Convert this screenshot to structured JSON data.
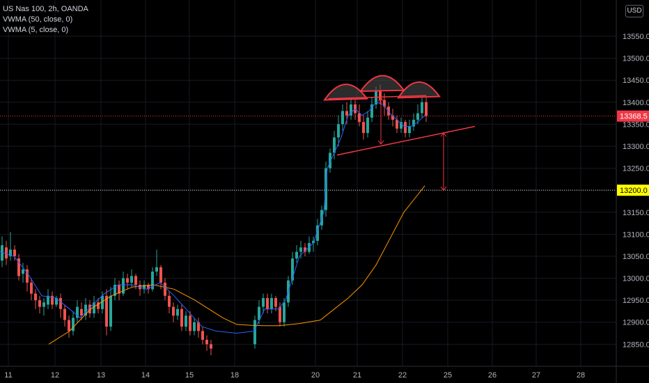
{
  "legend": {
    "symbol": "US Nas 100, 2h, OANDA",
    "indicator_1": "VWMA (50, close, 0)",
    "indicator_2": "VWMA (5, close, 0)"
  },
  "currency": "USD",
  "colors": {
    "up": "#26a69a",
    "down": "#ef5350",
    "vwma50": "#ff9800",
    "vwma5": "#2962ff",
    "drawing": "#f23645",
    "price_tag": "#f23645",
    "target_tag": "#ffff00",
    "axis_text": "#b2b5be"
  },
  "chart_data": {
    "type": "candlestick",
    "x_ticks": [
      "11",
      "12",
      "13",
      "14",
      "15",
      "18",
      "20",
      "21",
      "22",
      "25",
      "26",
      "27",
      "28"
    ],
    "y_ticks": [
      13550,
      13500,
      13450,
      13400,
      13350,
      13300,
      13250,
      13200,
      13150,
      13100,
      13050,
      13000,
      12950,
      12900,
      12850
    ],
    "ylim": [
      12830,
      13600
    ],
    "last_price": {
      "value": 13368.5,
      "label": "13368.5"
    },
    "target_level": {
      "value": 13200,
      "label": "13200.0"
    },
    "vwma50": [
      [
        70,
        12850
      ],
      [
        100,
        12880
      ],
      [
        130,
        12930
      ],
      [
        160,
        12960
      ],
      [
        190,
        12980
      ],
      [
        220,
        12985
      ],
      [
        250,
        12975
      ],
      [
        280,
        12950
      ],
      [
        300,
        12930
      ],
      [
        320,
        12910
      ],
      [
        340,
        12895
      ],
      [
        360,
        12893
      ],
      [
        380,
        12892
      ],
      [
        400,
        12892
      ],
      [
        430,
        12897
      ],
      [
        460,
        12905
      ],
      [
        480,
        12930
      ],
      [
        500,
        12955
      ],
      [
        520,
        12985
      ],
      [
        540,
        13030
      ],
      [
        560,
        13090
      ],
      [
        580,
        13150
      ],
      [
        600,
        13190
      ],
      [
        610,
        13210
      ]
    ],
    "vwma5": [
      [
        0,
        13060
      ],
      [
        20,
        13050
      ],
      [
        40,
        13010
      ],
      [
        60,
        12960
      ],
      [
        80,
        12955
      ],
      [
        100,
        12930
      ],
      [
        115,
        12910
      ],
      [
        130,
        12935
      ],
      [
        150,
        12965
      ],
      [
        170,
        12985
      ],
      [
        190,
        12985
      ],
      [
        210,
        12975
      ],
      [
        230,
        12990
      ],
      [
        250,
        12960
      ],
      [
        270,
        12925
      ],
      [
        290,
        12890
      ],
      [
        310,
        12880
      ],
      [
        340,
        12875
      ],
      [
        365,
        12880
      ],
      [
        380,
        12930
      ],
      [
        400,
        12930
      ],
      [
        410,
        12950
      ],
      [
        430,
        13050
      ],
      [
        450,
        13080
      ],
      [
        465,
        13150
      ],
      [
        470,
        13250
      ],
      [
        480,
        13285
      ],
      [
        490,
        13320
      ],
      [
        500,
        13370
      ],
      [
        510,
        13385
      ],
      [
        520,
        13370
      ],
      [
        530,
        13380
      ],
      [
        540,
        13400
      ],
      [
        550,
        13395
      ],
      [
        560,
        13375
      ],
      [
        570,
        13360
      ],
      [
        580,
        13345
      ],
      [
        590,
        13345
      ],
      [
        600,
        13355
      ],
      [
        610,
        13370
      ]
    ],
    "candles": [
      [
        3,
        13040,
        13075,
        13025,
        13095
      ],
      [
        9,
        13070,
        13045,
        13030,
        13085
      ],
      [
        15,
        13050,
        13065,
        13040,
        13105
      ],
      [
        21,
        13065,
        13050,
        13040,
        13075
      ],
      [
        27,
        13045,
        13005,
        12995,
        13055
      ],
      [
        33,
        13010,
        13020,
        12990,
        13035
      ],
      [
        39,
        13020,
        12990,
        12970,
        13030
      ],
      [
        45,
        12990,
        12965,
        12950,
        13000
      ],
      [
        51,
        12965,
        12950,
        12930,
        12975
      ],
      [
        57,
        12950,
        12935,
        12920,
        12960
      ],
      [
        63,
        12935,
        12945,
        12915,
        12955
      ],
      [
        69,
        12940,
        12960,
        12930,
        12975
      ],
      [
        75,
        12960,
        12940,
        12930,
        12970
      ],
      [
        81,
        12940,
        12955,
        12935,
        12960
      ],
      [
        87,
        12955,
        12930,
        12910,
        12965
      ],
      [
        93,
        12930,
        12905,
        12890,
        12940
      ],
      [
        99,
        12905,
        12880,
        12865,
        12915
      ],
      [
        105,
        12880,
        12910,
        12870,
        12925
      ],
      [
        111,
        12910,
        12935,
        12900,
        12950
      ],
      [
        117,
        12930,
        12915,
        12905,
        12945
      ],
      [
        123,
        12915,
        12940,
        12905,
        12955
      ],
      [
        129,
        12940,
        12920,
        12910,
        12950
      ],
      [
        135,
        12920,
        12945,
        12910,
        12960
      ],
      [
        141,
        12945,
        12930,
        12920,
        12955
      ],
      [
        147,
        12930,
        12960,
        12920,
        12970
      ],
      [
        153,
        12960,
        12890,
        12870,
        12975
      ],
      [
        159,
        12890,
        12960,
        12880,
        12980
      ],
      [
        165,
        12960,
        12985,
        12950,
        13000
      ],
      [
        171,
        12985,
        12965,
        12950,
        12995
      ],
      [
        177,
        12965,
        13000,
        12960,
        13015
      ],
      [
        183,
        13000,
        12990,
        12975,
        13010
      ],
      [
        189,
        12990,
        13005,
        12980,
        13020
      ],
      [
        195,
        13005,
        12985,
        12975,
        13010
      ],
      [
        201,
        12985,
        12975,
        12960,
        12995
      ],
      [
        207,
        12975,
        12985,
        12965,
        12995
      ],
      [
        213,
        12985,
        12975,
        12965,
        12990
      ],
      [
        219,
        12975,
        13015,
        12970,
        13025
      ],
      [
        225,
        13015,
        13025,
        13005,
        13065
      ],
      [
        231,
        13025,
        12990,
        12975,
        13030
      ],
      [
        237,
        12990,
        12960,
        12950,
        13000
      ],
      [
        243,
        12960,
        12935,
        12920,
        12970
      ],
      [
        249,
        12935,
        12915,
        12900,
        12945
      ],
      [
        255,
        12915,
        12930,
        12905,
        12940
      ],
      [
        261,
        12930,
        12890,
        12880,
        12940
      ],
      [
        267,
        12890,
        12915,
        12880,
        12925
      ],
      [
        273,
        12915,
        12880,
        12870,
        12925
      ],
      [
        279,
        12880,
        12900,
        12870,
        12910
      ],
      [
        285,
        12900,
        12880,
        12865,
        12910
      ],
      [
        291,
        12880,
        12860,
        12850,
        12890
      ],
      [
        297,
        12860,
        12850,
        12835,
        12870
      ],
      [
        303,
        12850,
        12840,
        12825,
        12860
      ],
      [
        366,
        12850,
        12905,
        12840,
        12915
      ],
      [
        372,
        12905,
        12935,
        12895,
        12950
      ],
      [
        378,
        12935,
        12955,
        12920,
        12965
      ],
      [
        384,
        12955,
        12930,
        12920,
        12965
      ],
      [
        390,
        12930,
        12955,
        12920,
        12965
      ],
      [
        396,
        12955,
        12935,
        12925,
        12960
      ],
      [
        402,
        12935,
        12900,
        12890,
        12945
      ],
      [
        408,
        12900,
        12945,
        12890,
        12955
      ],
      [
        414,
        12945,
        12995,
        12935,
        13005
      ],
      [
        420,
        12995,
        13045,
        12985,
        13060
      ],
      [
        426,
        13045,
        13060,
        13035,
        13075
      ],
      [
        432,
        13060,
        13070,
        13045,
        13085
      ],
      [
        438,
        13070,
        13060,
        13050,
        13080
      ],
      [
        444,
        13060,
        13080,
        13055,
        13095
      ],
      [
        450,
        13080,
        13085,
        13060,
        13095
      ],
      [
        456,
        13085,
        13120,
        13075,
        13135
      ],
      [
        462,
        13120,
        13155,
        13110,
        13165
      ],
      [
        468,
        13155,
        13250,
        13140,
        13265
      ],
      [
        474,
        13250,
        13285,
        13240,
        13295
      ],
      [
        480,
        13285,
        13320,
        13270,
        13335
      ],
      [
        486,
        13320,
        13350,
        13300,
        13370
      ],
      [
        492,
        13350,
        13380,
        13335,
        13395
      ],
      [
        498,
        13380,
        13370,
        13350,
        13400
      ],
      [
        504,
        13370,
        13395,
        13360,
        13410
      ],
      [
        510,
        13395,
        13375,
        13360,
        13405
      ],
      [
        516,
        13375,
        13355,
        13345,
        13395
      ],
      [
        522,
        13355,
        13330,
        13315,
        13370
      ],
      [
        528,
        13330,
        13365,
        13320,
        13380
      ],
      [
        534,
        13365,
        13395,
        13355,
        13410
      ],
      [
        540,
        13395,
        13425,
        13385,
        13435
      ],
      [
        546,
        13425,
        13405,
        13395,
        13440
      ],
      [
        552,
        13405,
        13390,
        13370,
        13420
      ],
      [
        558,
        13390,
        13370,
        13360,
        13400
      ],
      [
        564,
        13370,
        13360,
        13345,
        13385
      ],
      [
        570,
        13360,
        13340,
        13330,
        13370
      ],
      [
        576,
        13340,
        13355,
        13330,
        13365
      ],
      [
        582,
        13355,
        13330,
        13320,
        13360
      ],
      [
        588,
        13330,
        13345,
        13320,
        13360
      ],
      [
        594,
        13345,
        13360,
        13335,
        13375
      ],
      [
        600,
        13360,
        13375,
        13350,
        13395
      ],
      [
        606,
        13375,
        13400,
        13365,
        13410
      ],
      [
        612,
        13400,
        13368.5,
        13355,
        13410
      ]
    ],
    "drawings": {
      "neckline_top": [
        [
          472,
          13408
        ],
        [
          612,
          13415
        ]
      ],
      "trendline": [
        [
          484,
          13280
        ],
        [
          682,
          13345
        ]
      ],
      "arcs": [
        [
          [
            466,
            13405
          ],
          [
            496,
            13440
          ],
          [
            527,
            13408
          ]
        ],
        [
          [
            518,
            13425
          ],
          [
            549,
            13460
          ],
          [
            580,
            13427
          ]
        ],
        [
          [
            572,
            13410
          ],
          [
            601,
            13445
          ],
          [
            631,
            13413
          ]
        ]
      ],
      "measure_small": [
        [
          547,
          13410
        ],
        [
          547,
          13305
        ]
      ],
      "measure_target": [
        [
          637,
          13330
        ],
        [
          637,
          13200
        ]
      ]
    }
  }
}
